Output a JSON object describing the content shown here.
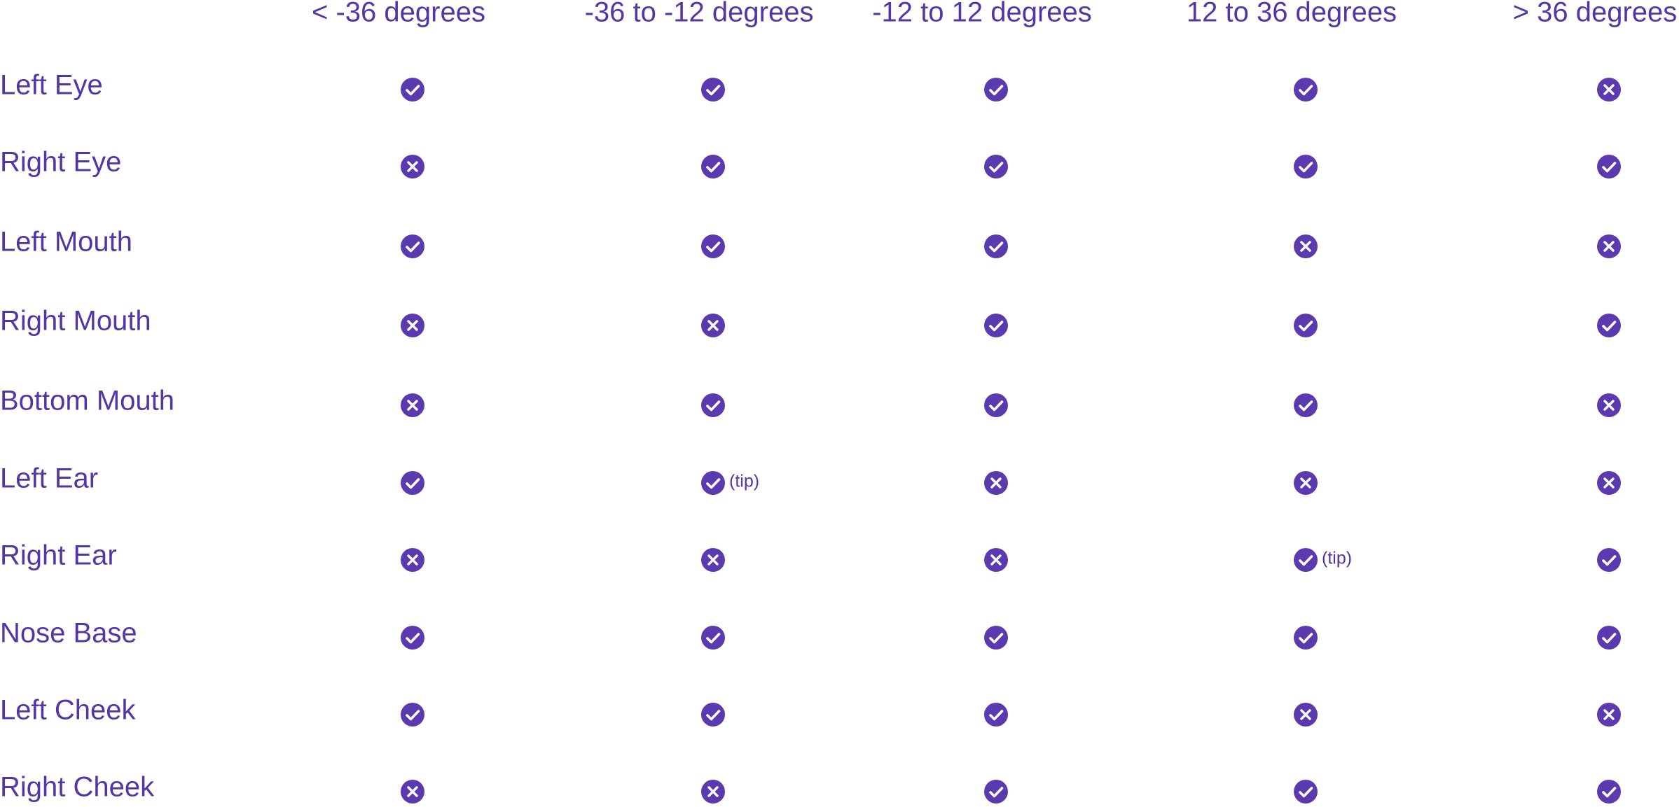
{
  "table": {
    "columns": [
      "< -36 degrees",
      "-36 to -12 degrees",
      "-12 to 12 degrees",
      "12 to 36 degrees",
      "> 36 degrees"
    ],
    "rows": [
      {
        "label": "Left Eye",
        "cells": [
          true,
          true,
          true,
          true,
          false
        ]
      },
      {
        "label": "Right Eye",
        "cells": [
          false,
          true,
          true,
          true,
          true
        ]
      },
      {
        "label": "Left Mouth",
        "cells": [
          true,
          true,
          true,
          false,
          false
        ]
      },
      {
        "label": "Right Mouth",
        "cells": [
          false,
          false,
          true,
          true,
          true
        ]
      },
      {
        "label": "Bottom Mouth",
        "cells": [
          false,
          true,
          true,
          true,
          false
        ]
      },
      {
        "label": "Left Ear",
        "cells": [
          true,
          {
            "supported": true,
            "note": "(tip)"
          },
          false,
          false,
          false
        ]
      },
      {
        "label": "Right Ear",
        "cells": [
          false,
          false,
          false,
          {
            "supported": true,
            "note": "(tip)"
          },
          true
        ]
      },
      {
        "label": "Nose Base",
        "cells": [
          true,
          true,
          true,
          true,
          true
        ]
      },
      {
        "label": "Left Cheek",
        "cells": [
          true,
          true,
          true,
          false,
          false
        ]
      },
      {
        "label": "Right Cheek",
        "cells": [
          false,
          false,
          true,
          true,
          true
        ]
      }
    ]
  }
}
